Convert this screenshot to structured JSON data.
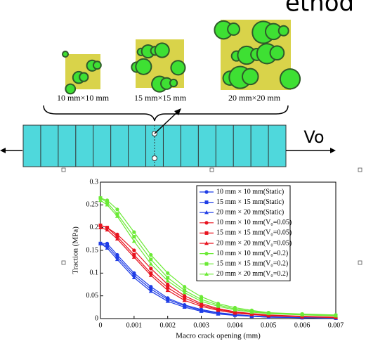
{
  "header": {
    "title": "ethod"
  },
  "images": [
    {
      "label": "10 mm×10 mm"
    },
    {
      "label": "15 mm×15 mm"
    },
    {
      "label": "20 mm×20 mm"
    }
  ],
  "velocity_label": "Vo",
  "chart_data": {
    "type": "line",
    "x_label": "Macro crack opening (mm)",
    "y_label": "Traction (MPa)",
    "x": [
      0,
      0.0002,
      0.0005,
      0.001,
      0.0015,
      0.002,
      0.0025,
      0.003,
      0.0035,
      0.004,
      0.0045,
      0.005,
      0.006,
      0.007
    ],
    "xlim": [
      0,
      0.007
    ],
    "xticks": [
      0,
      0.001,
      0.002,
      0.003,
      0.004,
      0.005,
      0.006,
      0.007
    ],
    "ylim": [
      0,
      0.3
    ],
    "yticks": [
      0,
      0.05,
      0.1,
      0.15,
      0.2,
      0.25,
      0.3
    ],
    "legend": "upper right",
    "series": [
      {
        "name": "10 mm × 10 mm(Static)",
        "color": "#1f3de6",
        "marker": "circle",
        "values": [
          0.165,
          0.165,
          0.14,
          0.1,
          0.07,
          0.045,
          0.03,
          0.02,
          0.013,
          0.009,
          0.006,
          0.004,
          0.002,
          0.001
        ]
      },
      {
        "name": "15 mm × 15 mm(Static)",
        "color": "#1f3de6",
        "marker": "square",
        "values": [
          0.165,
          0.16,
          0.135,
          0.095,
          0.065,
          0.042,
          0.028,
          0.018,
          0.012,
          0.008,
          0.005,
          0.003,
          0.002,
          0.001
        ]
      },
      {
        "name": "20 mm × 20 mm(Static)",
        "color": "#1f3de6",
        "marker": "triangle",
        "values": [
          0.165,
          0.155,
          0.13,
          0.09,
          0.06,
          0.038,
          0.025,
          0.016,
          0.01,
          0.007,
          0.005,
          0.003,
          0.002,
          0.001
        ]
      },
      {
        "name": "10 mm × 10 mm(V₀=0.05)",
        "color": "#e8131f",
        "marker": "circle",
        "values": [
          0.205,
          0.2,
          0.185,
          0.15,
          0.11,
          0.075,
          0.05,
          0.033,
          0.022,
          0.015,
          0.011,
          0.008,
          0.005,
          0.003
        ]
      },
      {
        "name": "15 mm × 15 mm(V₀=0.05)",
        "color": "#e8131f",
        "marker": "square",
        "values": [
          0.205,
          0.2,
          0.18,
          0.14,
          0.1,
          0.068,
          0.045,
          0.03,
          0.02,
          0.014,
          0.01,
          0.007,
          0.004,
          0.003
        ]
      },
      {
        "name": "20 mm × 20 mm(V₀=0.05)",
        "color": "#e8131f",
        "marker": "triangle",
        "values": [
          0.2,
          0.195,
          0.175,
          0.135,
          0.095,
          0.062,
          0.04,
          0.027,
          0.018,
          0.012,
          0.009,
          0.006,
          0.004,
          0.002
        ]
      },
      {
        "name": "10 mm × 10 mm(V₀=0.2)",
        "color": "#6bea35",
        "marker": "circle",
        "values": [
          0.265,
          0.26,
          0.24,
          0.19,
          0.14,
          0.1,
          0.07,
          0.048,
          0.033,
          0.024,
          0.018,
          0.013,
          0.01,
          0.008
        ]
      },
      {
        "name": "15 mm × 15 mm(V₀=0.2)",
        "color": "#6bea35",
        "marker": "square",
        "values": [
          0.265,
          0.255,
          0.23,
          0.18,
          0.13,
          0.09,
          0.062,
          0.042,
          0.03,
          0.021,
          0.016,
          0.012,
          0.009,
          0.007
        ]
      },
      {
        "name": "20 mm × 20 mm(V₀=0.2)",
        "color": "#6bea35",
        "marker": "triangle",
        "values": [
          0.26,
          0.25,
          0.225,
          0.17,
          0.12,
          0.083,
          0.057,
          0.038,
          0.027,
          0.019,
          0.014,
          0.011,
          0.008,
          0.006
        ]
      }
    ]
  }
}
